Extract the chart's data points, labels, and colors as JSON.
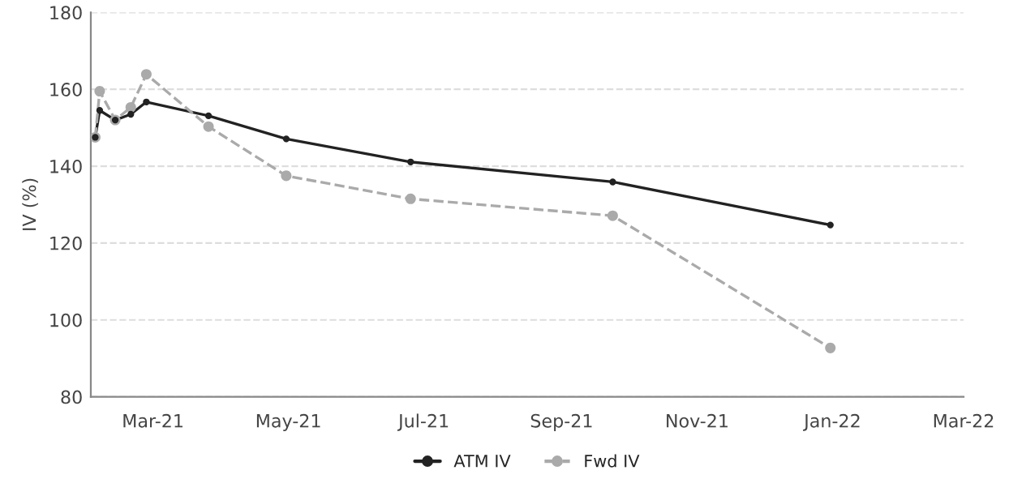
{
  "chart_data": {
    "type": "line",
    "ylabel": "IV (%)",
    "x": [
      "2021-02-03",
      "2021-02-05",
      "2021-02-12",
      "2021-02-19",
      "2021-02-26",
      "2021-03-26",
      "2021-04-30",
      "2021-06-25",
      "2021-09-24",
      "2021-12-31"
    ],
    "series": [
      {
        "name": "ATM IV",
        "color": "#222222",
        "line_style": "solid",
        "values": [
          147.5,
          154.5,
          152,
          153.5,
          156.7,
          153.1,
          147.1,
          141.1,
          135.9,
          124.7
        ]
      },
      {
        "name": "Fwd IV",
        "color": "#aaaaaa",
        "line_style": "dashed",
        "values": [
          147.5,
          159.5,
          152,
          155.3,
          163.9,
          150.3,
          137.5,
          131.5,
          127.1,
          92.7
        ]
      }
    ],
    "xlim": [
      "2021-02-01",
      "2022-03-01"
    ],
    "xticks": [
      {
        "value": "2021-03-01",
        "label": "Mar-21"
      },
      {
        "value": "2021-05-01",
        "label": "May-21"
      },
      {
        "value": "2021-07-01",
        "label": "Jul-21"
      },
      {
        "value": "2021-09-01",
        "label": "Sep-21"
      },
      {
        "value": "2021-11-01",
        "label": "Nov-21"
      },
      {
        "value": "2022-01-01",
        "label": "Jan-22"
      },
      {
        "value": "2022-03-01",
        "label": "Mar-22"
      }
    ],
    "ylim": [
      80,
      180
    ],
    "yticks": [
      80,
      100,
      120,
      140,
      160,
      180
    ],
    "grid": "y",
    "legend": "bottom",
    "marker": "circle"
  }
}
